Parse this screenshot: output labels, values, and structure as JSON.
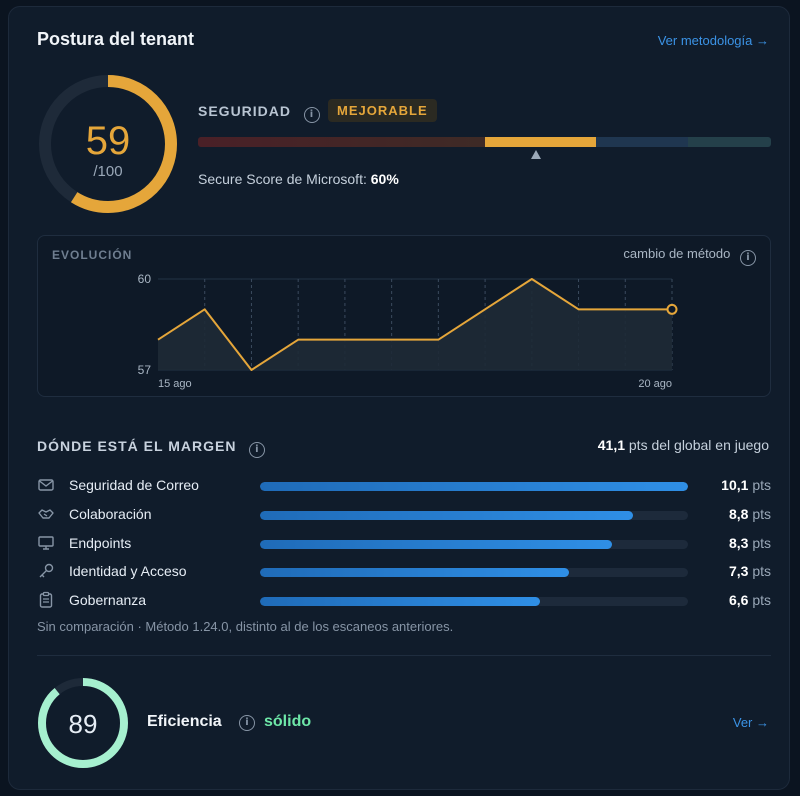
{
  "header": {
    "title": "Postura del tenant",
    "methodology_link": "Ver metodología →"
  },
  "score": {
    "value": "59",
    "denominator": "/100",
    "fraction": 0.59,
    "color": "#e5a63a"
  },
  "security": {
    "label": "SEGURIDAD",
    "info_icon": "info-icon",
    "badge": "MEJORABLE",
    "marker_fraction": 0.59,
    "secure_score_label": "Secure Score de Microsoft:",
    "secure_score_value": "60%"
  },
  "evolution": {
    "title": "EVOLUCIÓN",
    "change_label": "cambio de método",
    "y_labels": [
      "60",
      "57"
    ],
    "x_labels": [
      "15 ago",
      "20 ago"
    ]
  },
  "chart_data": {
    "type": "line",
    "ylim": [
      57,
      60
    ],
    "values": [
      58,
      59,
      57,
      58,
      58,
      58,
      58,
      59,
      60,
      59,
      59,
      59
    ],
    "x_start_label": "15 ago",
    "x_end_label": "20 ago",
    "color": "#e5a63a"
  },
  "margin": {
    "title": "DÓNDE ESTÁ EL MARGEN",
    "total_value": "41,1",
    "total_label": "pts del global en juego",
    "unit": "pts",
    "max": 10.1,
    "items": [
      {
        "icon": "mail-icon",
        "label": "Seguridad de Correo",
        "value": "10,1",
        "num": 10.1
      },
      {
        "icon": "handshake-icon",
        "label": "Colaboración",
        "value": "8,8",
        "num": 8.8
      },
      {
        "icon": "monitor-icon",
        "label": "Endpoints",
        "value": "8,3",
        "num": 8.3
      },
      {
        "icon": "key-icon",
        "label": "Identidad y Acceso",
        "value": "7,3",
        "num": 7.3
      },
      {
        "icon": "clipboard-icon",
        "label": "Gobernanza",
        "value": "6,6",
        "num": 6.6
      }
    ],
    "note": "Sin comparación · Método 1.24.0, distinto al de los escaneos anteriores."
  },
  "efficiency": {
    "value": "89",
    "fraction": 0.89,
    "label": "Eficiencia",
    "status": "sólido",
    "link": "Ver →",
    "color": "#6ee7a8"
  }
}
